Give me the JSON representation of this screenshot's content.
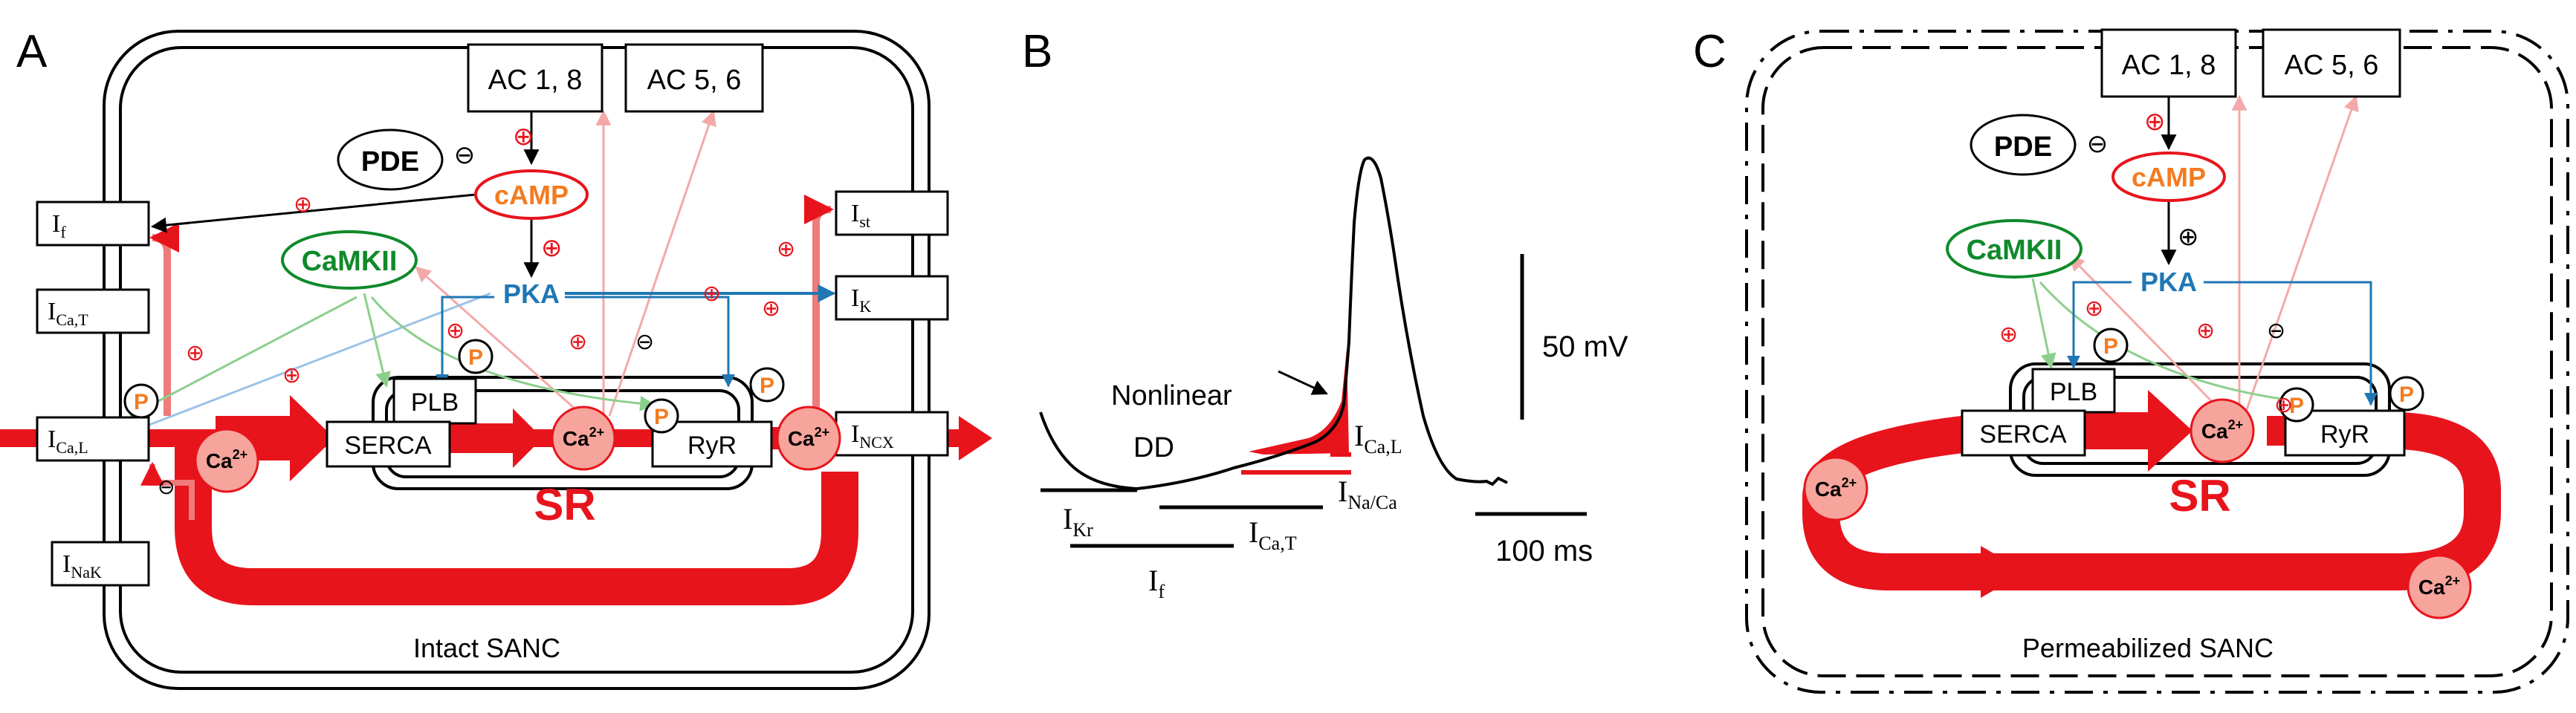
{
  "panels": {
    "a": {
      "letter": "A",
      "caption": "Intact SANC",
      "ac18": "AC 1, 8",
      "ac56": "AC 5, 6",
      "pde": "PDE",
      "camp": "cAMP",
      "camkii": "CaMKII",
      "pka": "PKA",
      "plb": "PLB",
      "serca": "SERCA",
      "ryr": "RyR",
      "sr": "SR",
      "p": "P",
      "ca": "Ca",
      "ca_sup": "2+",
      "plus": "⊕",
      "minus": "⊖",
      "channels": {
        "if_main": "I",
        "if_sub": "f",
        "icat_main": "I",
        "icat_sub": "Ca,T",
        "ical_main": "I",
        "ical_sub": "Ca,L",
        "inak_main": "I",
        "inak_sub": "NaK",
        "ist_main": "I",
        "ist_sub": "st",
        "ik_main": "I",
        "ik_sub": "K",
        "incx_main": "I",
        "incx_sub": "NCX"
      }
    },
    "b": {
      "letter": "B",
      "nonlinear": "Nonlinear",
      "dd": "DD",
      "scale_mv": "50 mV",
      "scale_ms": "100 ms",
      "currents": {
        "ikr_main": "I",
        "ikr_sub": "Kr",
        "if_main": "I",
        "if_sub": "f",
        "icat_main": "I",
        "icat_sub": "Ca,T",
        "ical_main": "I",
        "ical_sub": "Ca,L",
        "inaca_main": "I",
        "inaca_sub": "Na/Ca"
      }
    },
    "c": {
      "letter": "C",
      "caption": "Permeabilized SANC",
      "ac18": "AC 1, 8",
      "ac56": "AC 5, 6",
      "pde": "PDE",
      "camp": "cAMP",
      "camkii": "CaMKII",
      "pka": "PKA",
      "plb": "PLB",
      "serca": "SERCA",
      "ryr": "RyR",
      "sr": "SR",
      "p": "P",
      "ca": "Ca",
      "ca_sup": "2+",
      "plus": "⊕",
      "minus": "⊖"
    }
  },
  "colors": {
    "red": "#e8141c",
    "pink": "#f4a9a9",
    "ca_fill": "#f6a49c",
    "orange": "#f47b20",
    "green": "#0f8a2b",
    "light_green": "#8ccf8c",
    "blue": "#1f77b4",
    "light_blue": "#9cc3e6"
  }
}
